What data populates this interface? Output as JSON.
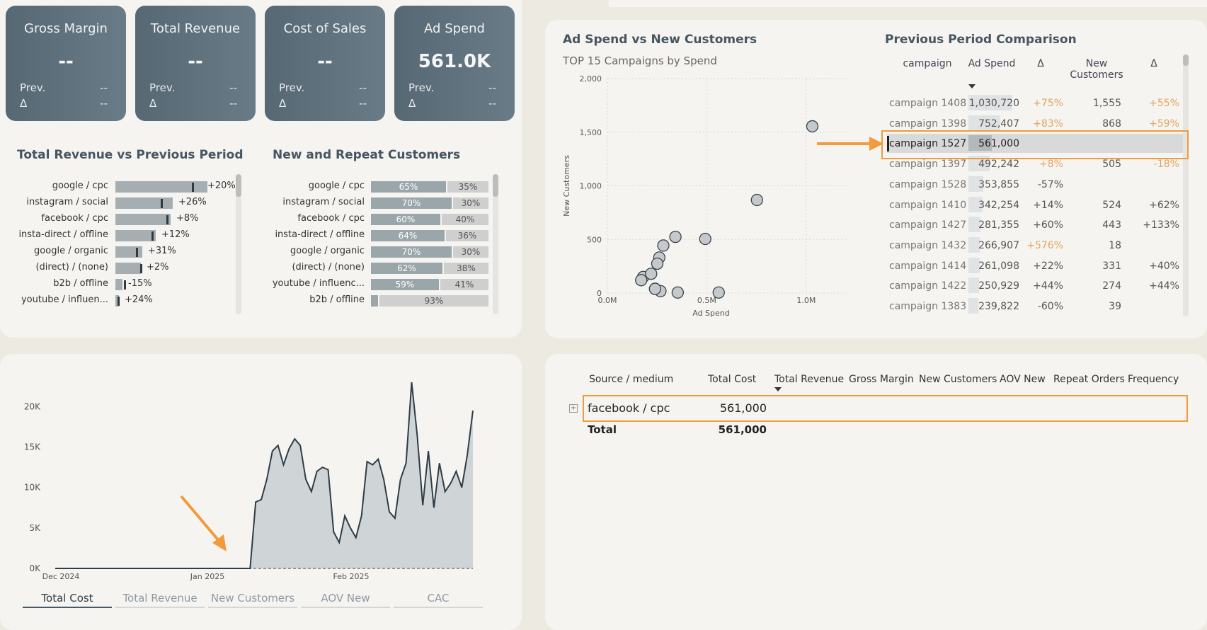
{
  "kpis": [
    {
      "title": "Gross Margin",
      "value": "--",
      "prev_label": "Prev.",
      "prev_value": "--",
      "delta_label": "Δ",
      "delta_value": "--"
    },
    {
      "title": "Total Revenue",
      "value": "--",
      "prev_label": "Prev.",
      "prev_value": "--",
      "delta_label": "Δ",
      "delta_value": "--"
    },
    {
      "title": "Cost of Sales",
      "value": "--",
      "prev_label": "Prev.",
      "prev_value": "--",
      "delta_label": "Δ",
      "delta_value": "--"
    },
    {
      "title": "Ad Spend",
      "value": "561.0K",
      "prev_label": "Prev.",
      "prev_value": "--",
      "delta_label": "Δ",
      "delta_value": "--"
    }
  ],
  "revenue_vs_prev": {
    "title": "Total Revenue vs Previous Period",
    "rows": [
      {
        "label": "google / cpc",
        "value": 1.0,
        "marker": 0.83,
        "delta": "+20%"
      },
      {
        "label": "instagram / social",
        "value": 0.62,
        "marker": 0.49,
        "delta": "+26%"
      },
      {
        "label": "facebook / cpc",
        "value": 0.6,
        "marker": 0.55,
        "delta": "+8%"
      },
      {
        "label": "insta-direct / offline",
        "value": 0.44,
        "marker": 0.39,
        "delta": "+12%"
      },
      {
        "label": "google / organic",
        "value": 0.29,
        "marker": 0.22,
        "delta": "+31%"
      },
      {
        "label": "(direct) / (none)",
        "value": 0.28,
        "marker": 0.27,
        "delta": "+2%"
      },
      {
        "label": "b2b / offline",
        "value": 0.08,
        "marker": 0.09,
        "delta": "-15%"
      },
      {
        "label": "youtube / influen...",
        "value": 0.04,
        "marker": 0.02,
        "delta": "+24%"
      }
    ]
  },
  "new_repeat": {
    "title": "New and Repeat Customers",
    "rows": [
      {
        "label": "google / cpc",
        "new": "65%",
        "repeat": "35%",
        "new_frac": 0.65
      },
      {
        "label": "instagram / social",
        "new": "70%",
        "repeat": "30%",
        "new_frac": 0.7
      },
      {
        "label": "facebook / cpc",
        "new": "60%",
        "repeat": "40%",
        "new_frac": 0.6
      },
      {
        "label": "insta-direct / offline",
        "new": "64%",
        "repeat": "36%",
        "new_frac": 0.64
      },
      {
        "label": "google / organic",
        "new": "70%",
        "repeat": "30%",
        "new_frac": 0.7
      },
      {
        "label": "(direct) / (none)",
        "new": "62%",
        "repeat": "38%",
        "new_frac": 0.62
      },
      {
        "label": "youtube / influenc...",
        "new": "59%",
        "repeat": "41%",
        "new_frac": 0.59
      },
      {
        "label": "b2b / offline",
        "new": "",
        "repeat": "93%",
        "new_frac": 0.07
      }
    ]
  },
  "scatter": {
    "title": "Ad Spend vs New Customers",
    "subtitle": "TOP 15 Campaigns by Spend"
  },
  "comparison": {
    "title": "Previous Period Comparison",
    "headers": [
      "campaign",
      "Ad Spend",
      "Δ",
      "New\nCustomers",
      "Δ"
    ],
    "rows": [
      {
        "campaign": "campaign 1408",
        "spend": "1,030,720",
        "d1": "+75%",
        "newc": "1,555",
        "d2": "+55%",
        "d1o": true,
        "d2o": true,
        "frac": 1.0
      },
      {
        "campaign": "campaign 1398",
        "spend": "752,407",
        "d1": "+83%",
        "newc": "868",
        "d2": "+59%",
        "d1o": true,
        "d2o": true,
        "frac": 0.73
      },
      {
        "campaign": "campaign 1527",
        "spend": "561,000",
        "d1": "",
        "newc": "",
        "d2": "",
        "d1o": false,
        "d2o": false,
        "frac": 0.54
      },
      {
        "campaign": "campaign 1397",
        "spend": "492,242",
        "d1": "+8%",
        "newc": "505",
        "d2": "-18%",
        "d1o": true,
        "d2o": true,
        "frac": 0.48
      },
      {
        "campaign": "campaign 1528",
        "spend": "353,855",
        "d1": "-57%",
        "newc": "",
        "d2": "",
        "d1o": false,
        "d2o": false,
        "frac": 0.34
      },
      {
        "campaign": "campaign 1410",
        "spend": "342,254",
        "d1": "+14%",
        "newc": "524",
        "d2": "+62%",
        "d1o": false,
        "d2o": false,
        "frac": 0.33
      },
      {
        "campaign": "campaign 1427",
        "spend": "281,355",
        "d1": "+60%",
        "newc": "443",
        "d2": "+133%",
        "d1o": false,
        "d2o": false,
        "frac": 0.27
      },
      {
        "campaign": "campaign 1432",
        "spend": "266,907",
        "d1": "+576%",
        "newc": "18",
        "d2": "",
        "d1o": true,
        "d2o": false,
        "frac": 0.26
      },
      {
        "campaign": "campaign 1414",
        "spend": "261,098",
        "d1": "+22%",
        "newc": "331",
        "d2": "+40%",
        "d1o": false,
        "d2o": false,
        "frac": 0.25
      },
      {
        "campaign": "campaign 1422",
        "spend": "250,929",
        "d1": "+44%",
        "newc": "274",
        "d2": "+44%",
        "d1o": false,
        "d2o": false,
        "frac": 0.24
      },
      {
        "campaign": "campaign 1383",
        "spend": "239,822",
        "d1": "-60%",
        "newc": "39",
        "d2": "",
        "d1o": false,
        "d2o": false,
        "frac": 0.23
      }
    ]
  },
  "matrix": {
    "headers": [
      "Source / medium",
      "Total Cost",
      "Total Revenue",
      "Gross Margin",
      "New Customers",
      "AOV New",
      "Repeat Orders",
      "Frequency"
    ],
    "row": {
      "source": "facebook / cpc",
      "cost": "561,000"
    },
    "total": {
      "label": "Total",
      "cost": "561,000"
    },
    "expand_icon": "plus-box-icon"
  },
  "tabs": [
    "Total Cost",
    "Total Revenue",
    "New Customers",
    "AOV New",
    "CAC"
  ],
  "colors": {
    "accent": "#f29a3c",
    "kpi_bg": "#5e707c",
    "bar": "#a6aeb2",
    "orange_text": "#e3a561"
  },
  "chart_data": [
    {
      "type": "scatter",
      "title": "Ad Spend vs New Customers",
      "subtitle": "TOP 15 Campaigns by Spend",
      "xlabel": "Ad Spend",
      "ylabel": "New Customers",
      "xlim": [
        0,
        1200000
      ],
      "ylim": [
        0,
        2000
      ],
      "x_ticks": [
        "0.0M",
        "0.5M",
        "1.0M"
      ],
      "y_ticks": [
        "0",
        "500",
        "1,000",
        "1,500",
        "2,000"
      ],
      "points": [
        [
          1030720,
          1555
        ],
        [
          752407,
          868
        ],
        [
          492242,
          505
        ],
        [
          342254,
          524
        ],
        [
          281355,
          443
        ],
        [
          261098,
          331
        ],
        [
          250929,
          274
        ],
        [
          180000,
          150
        ],
        [
          170000,
          120
        ],
        [
          220000,
          180
        ],
        [
          240000,
          40
        ],
        [
          266907,
          18
        ],
        [
          353855,
          5
        ],
        [
          239822,
          39
        ],
        [
          560000,
          5
        ]
      ]
    },
    {
      "type": "area",
      "x_ticks": [
        "Dec 2024",
        "Jan 2025",
        "Feb 2025"
      ],
      "y_ticks": [
        "0K",
        "5K",
        "10K",
        "15K",
        "20K"
      ],
      "ylim": [
        0,
        23000
      ],
      "values": [
        0,
        0,
        0,
        0,
        0,
        0,
        0,
        0,
        0,
        0,
        0,
        0,
        0,
        0,
        0,
        0,
        0,
        0,
        0,
        0,
        0,
        0,
        0,
        0,
        0,
        0,
        0,
        0,
        0,
        0,
        0,
        0,
        0,
        0,
        0,
        0,
        8200,
        8500,
        11000,
        14500,
        15200,
        12800,
        14800,
        16000,
        15200,
        11000,
        9500,
        12000,
        12500,
        12200,
        4500,
        3200,
        6500,
        5000,
        3800,
        6500,
        13200,
        12800,
        13500,
        11000,
        7000,
        6200,
        11000,
        13000,
        23000,
        16500,
        7800,
        14500,
        7500,
        13000,
        9500,
        10500,
        12000,
        10000,
        14000,
        19500
      ]
    }
  ]
}
